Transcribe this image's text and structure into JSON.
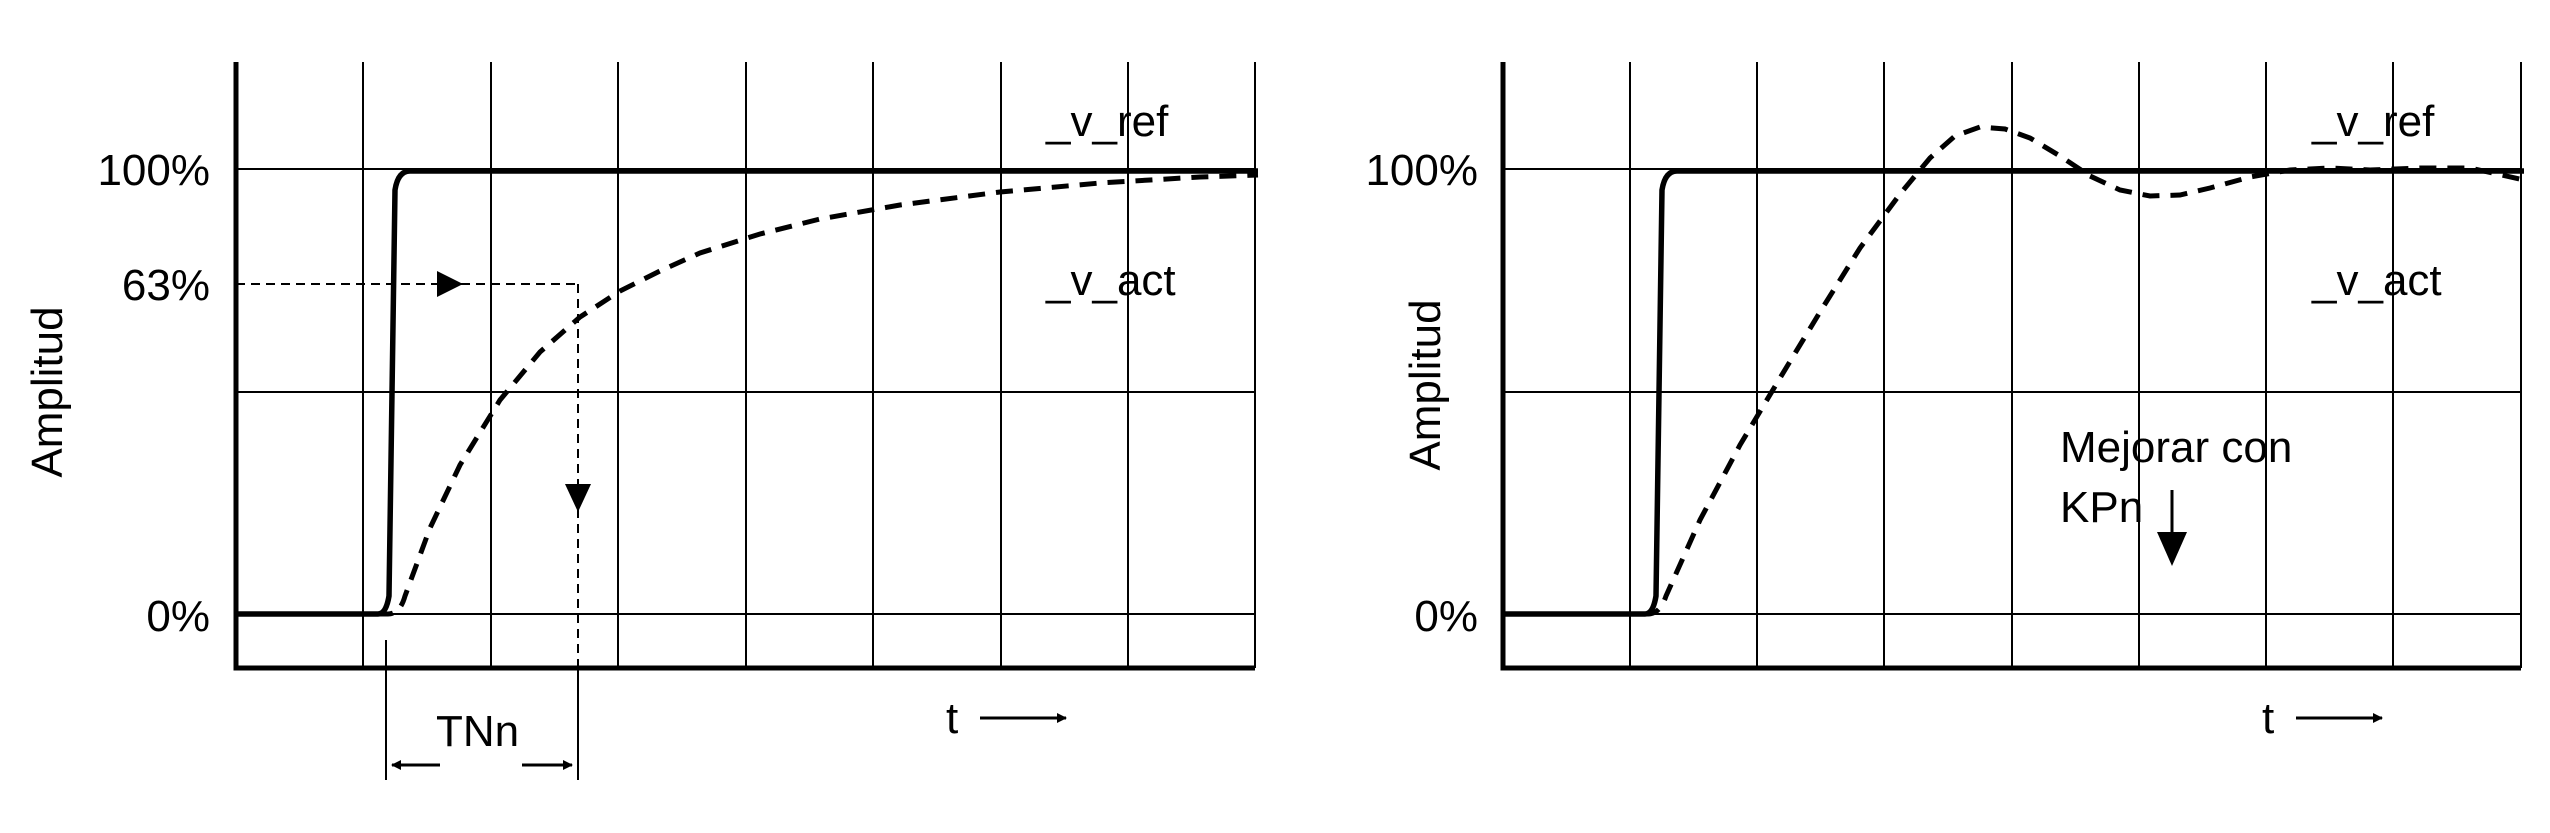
{
  "left_panel": {
    "y_label": "Amplitud",
    "tick_100": "100%",
    "tick_63": "63%",
    "tick_0": "0%",
    "ref_label": "_v_ref",
    "act_label": "_v_act",
    "time_label": "t",
    "tnn_label": "TNn"
  },
  "right_panel": {
    "y_label": "Amplitud",
    "tick_100": "100%",
    "tick_0": "0%",
    "ref_label": "_v_ref",
    "act_label": "_v_act",
    "time_label": "t",
    "note_line1": "Mejorar con",
    "note_line2": "KPn"
  }
}
